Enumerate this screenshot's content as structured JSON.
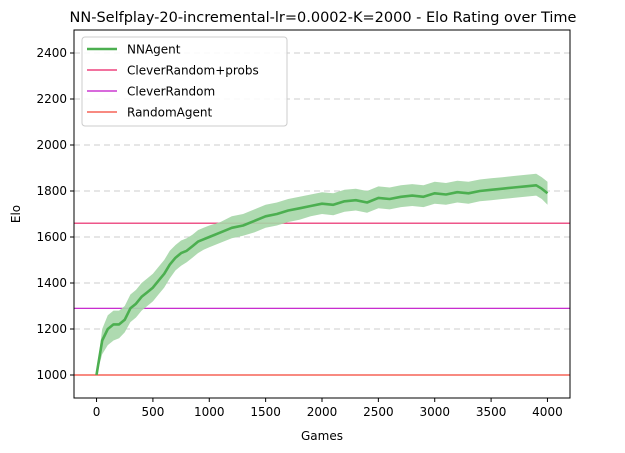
{
  "chart_data": {
    "type": "line",
    "title": "NN-Selfplay-20-incremental-lr=0.0002-K=2000 - Elo Rating over Time",
    "xlabel": "Games",
    "ylabel": "Elo",
    "xlim": [
      -200,
      4200
    ],
    "ylim": [
      900,
      2500
    ],
    "xticks": [
      0,
      500,
      1000,
      1500,
      2000,
      2500,
      3000,
      3500,
      4000
    ],
    "yticks": [
      1000,
      1200,
      1400,
      1600,
      1800,
      2000,
      2200,
      2400
    ],
    "grid": "horizontal dashed",
    "legend_position": "top-left",
    "series": [
      {
        "name": "NNAgent",
        "color": "#4caf50",
        "band_color": "#a5d6a7",
        "x": [
          0,
          50,
          100,
          150,
          200,
          250,
          300,
          350,
          400,
          450,
          500,
          550,
          600,
          650,
          700,
          750,
          800,
          850,
          900,
          950,
          1000,
          1100,
          1200,
          1300,
          1400,
          1500,
          1600,
          1700,
          1800,
          1900,
          2000,
          2100,
          2200,
          2300,
          2400,
          2500,
          2600,
          2700,
          2800,
          2900,
          3000,
          3100,
          3200,
          3300,
          3400,
          3500,
          3600,
          3700,
          3800,
          3900,
          3950,
          4000
        ],
        "values": [
          1000,
          1150,
          1200,
          1220,
          1220,
          1240,
          1290,
          1310,
          1340,
          1360,
          1380,
          1410,
          1440,
          1480,
          1510,
          1530,
          1540,
          1560,
          1580,
          1590,
          1600,
          1620,
          1640,
          1650,
          1670,
          1690,
          1700,
          1715,
          1725,
          1735,
          1745,
          1740,
          1755,
          1760,
          1750,
          1770,
          1765,
          1775,
          1780,
          1775,
          1790,
          1785,
          1795,
          1790,
          1800,
          1805,
          1810,
          1815,
          1820,
          1825,
          1810,
          1790
        ],
        "lower": [
          1000,
          1090,
          1130,
          1150,
          1160,
          1185,
          1230,
          1250,
          1280,
          1300,
          1320,
          1350,
          1380,
          1420,
          1455,
          1475,
          1490,
          1510,
          1530,
          1545,
          1555,
          1575,
          1595,
          1605,
          1620,
          1640,
          1650,
          1665,
          1675,
          1690,
          1700,
          1695,
          1710,
          1715,
          1705,
          1725,
          1720,
          1730,
          1735,
          1730,
          1745,
          1740,
          1750,
          1745,
          1755,
          1760,
          1765,
          1770,
          1775,
          1780,
          1765,
          1740
        ],
        "upper": [
          1000,
          1200,
          1260,
          1280,
          1280,
          1300,
          1350,
          1370,
          1400,
          1420,
          1440,
          1470,
          1500,
          1540,
          1565,
          1585,
          1595,
          1610,
          1630,
          1640,
          1650,
          1665,
          1690,
          1700,
          1720,
          1740,
          1750,
          1765,
          1775,
          1785,
          1795,
          1790,
          1805,
          1810,
          1800,
          1820,
          1815,
          1825,
          1830,
          1825,
          1840,
          1835,
          1845,
          1840,
          1850,
          1855,
          1860,
          1865,
          1870,
          1875,
          1860,
          1840
        ]
      },
      {
        "name": "CleverRandom+probs",
        "color": "#e91e63",
        "constant": 1660
      },
      {
        "name": "CleverRandom",
        "color": "#c010c8",
        "constant": 1290
      },
      {
        "name": "RandomAgent",
        "color": "#f44336",
        "constant": 1000
      }
    ]
  }
}
